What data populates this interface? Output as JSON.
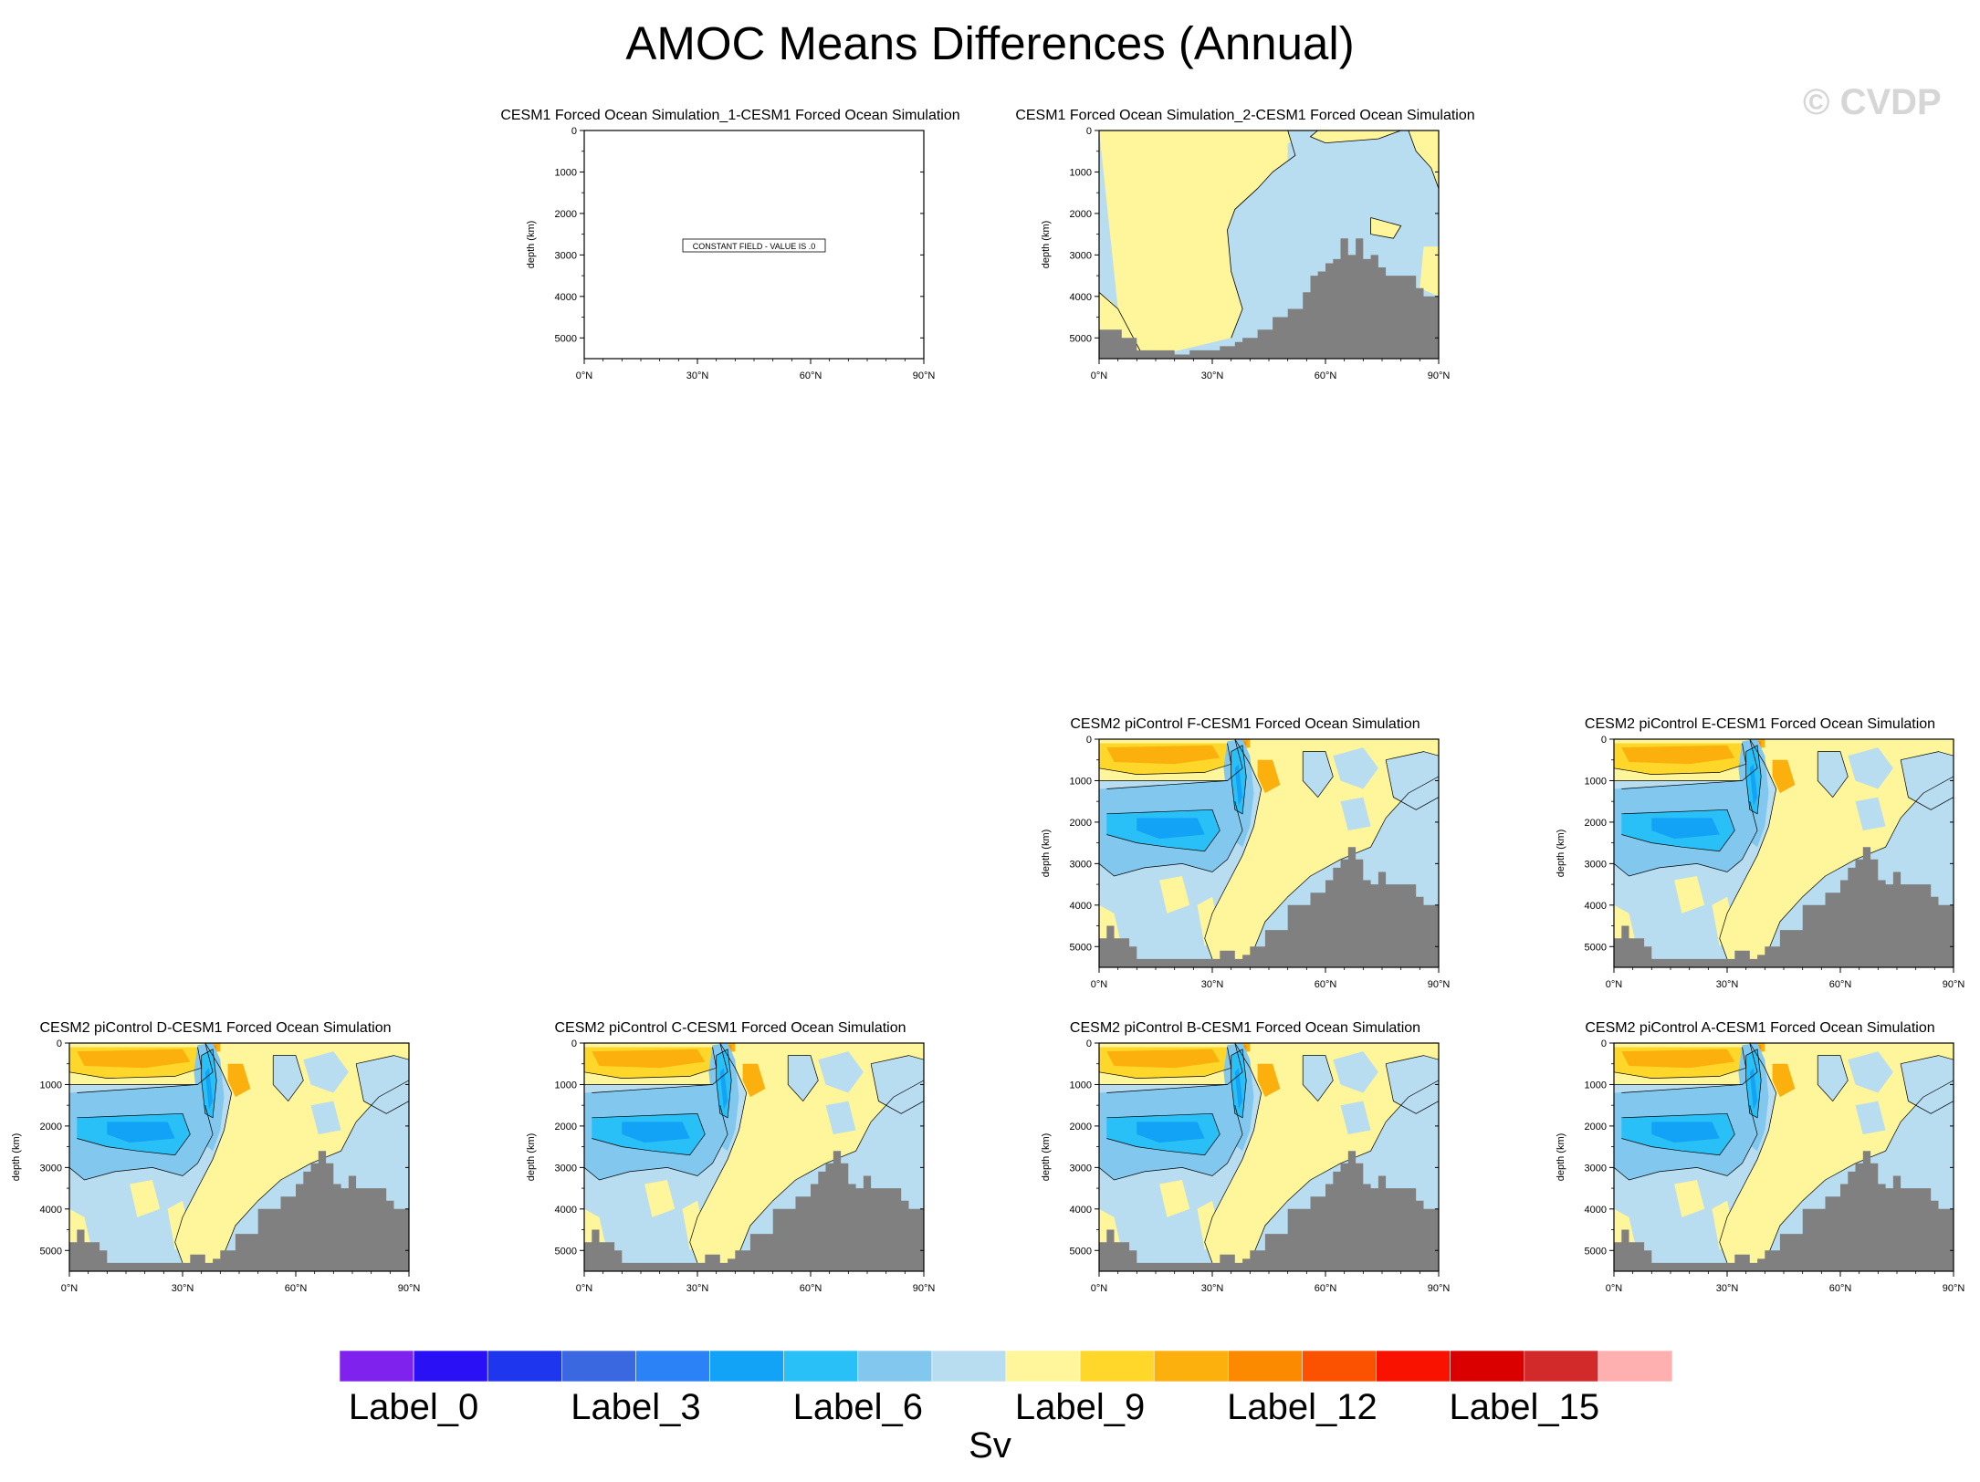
{
  "title": "AMOC Means Differences (Annual)",
  "watermark": "© CVDP",
  "panel_defaults": {
    "ylabel": "depth (km)",
    "yticks": [
      "0",
      "1000",
      "2000",
      "3000",
      "4000",
      "5000"
    ],
    "xticks": [
      "0°N",
      "30°N",
      "60°N",
      "90°N"
    ],
    "ylim": [
      0,
      5500
    ],
    "xlim": [
      0,
      90
    ]
  },
  "panels": [
    {
      "title": "CESM1 Forced Ocean Simulation_1-CESM1 Forced Ocean Simulation",
      "kind": "constant",
      "message": "CONSTANT FIELD - VALUE IS .0"
    },
    {
      "title": "CESM1 Forced Ocean Simulation_2-CESM1 Forced Ocean Simulation",
      "kind": "small"
    },
    {
      "title": "CESM2 piControl F-CESM1 Forced Ocean Simulation",
      "kind": "amoc"
    },
    {
      "title": "CESM2 piControl E-CESM1 Forced Ocean Simulation",
      "kind": "amoc"
    },
    {
      "title": "CESM2 piControl D-CESM1 Forced Ocean Simulation",
      "kind": "amoc"
    },
    {
      "title": "CESM2 piControl C-CESM1 Forced Ocean Simulation",
      "kind": "amoc"
    },
    {
      "title": "CESM2 piControl B-CESM1 Forced Ocean Simulation",
      "kind": "amoc"
    },
    {
      "title": "CESM2 piControl A-CESM1 Forced Ocean Simulation",
      "kind": "amoc"
    }
  ],
  "chart_data": {
    "type": "heatmap",
    "colorbar": {
      "colors": [
        "#8022ee",
        "#2a10f5",
        "#1e36ee",
        "#3a68e0",
        "#2a82f6",
        "#12a2f6",
        "#28c0f6",
        "#82c8ee",
        "#b8dcf0",
        "#fff59a",
        "#fed72a",
        "#fcb00e",
        "#fc8a00",
        "#fa5200",
        "#fa1200",
        "#da0000",
        "#d22a2a",
        "#feb0b0"
      ],
      "labels": [
        "Label_0",
        "Label_3",
        "Label_6",
        "Label_9",
        "Label_12",
        "Label_15"
      ],
      "label_bins": [
        0,
        3,
        6,
        9,
        12,
        15
      ],
      "units": "Sv"
    },
    "bathymetry_depth": {
      "lat": [
        0,
        2,
        4,
        6,
        8,
        10,
        12,
        14,
        16,
        18,
        20,
        22,
        24,
        26,
        28,
        30,
        32,
        34,
        36,
        38,
        40,
        42,
        44,
        46,
        48,
        50,
        52,
        54,
        56,
        58,
        60,
        62,
        64,
        66,
        68,
        70,
        72,
        74,
        76,
        78,
        80,
        82,
        84,
        86,
        88,
        90
      ],
      "depth": [
        4800,
        4500,
        4800,
        4800,
        5000,
        5300,
        5300,
        5300,
        5300,
        5300,
        5300,
        5300,
        5300,
        5300,
        5300,
        5300,
        5100,
        5100,
        5300,
        5200,
        5000,
        5000,
        4600,
        4600,
        4600,
        4000,
        4000,
        4000,
        3700,
        3700,
        3400,
        3100,
        2900,
        2600,
        2900,
        3400,
        3500,
        3200,
        3500,
        3500,
        3500,
        3500,
        3800,
        4000,
        4000,
        4000
      ]
    },
    "small_panel_bathymetry_depth": {
      "lat": [
        0,
        2,
        4,
        6,
        8,
        10,
        12,
        14,
        16,
        18,
        20,
        22,
        24,
        26,
        28,
        30,
        32,
        34,
        36,
        38,
        40,
        42,
        44,
        46,
        48,
        50,
        52,
        54,
        56,
        58,
        60,
        62,
        64,
        66,
        68,
        70,
        72,
        74,
        76,
        78,
        80,
        82,
        84,
        86,
        88,
        90
      ],
      "depth": [
        4800,
        4800,
        4800,
        5000,
        5000,
        5300,
        5300,
        5300,
        5300,
        5300,
        5400,
        5400,
        5300,
        5300,
        5300,
        5300,
        5200,
        5200,
        5100,
        5000,
        5000,
        4800,
        4800,
        4500,
        4500,
        4300,
        4300,
        3900,
        3500,
        3400,
        3200,
        3100,
        2600,
        3000,
        2600,
        3100,
        3000,
        3300,
        3500,
        3500,
        3500,
        3500,
        3800,
        4000,
        4000,
        4000
      ]
    },
    "small_panel_fields": {
      "yellow_bins": [
        9
      ],
      "blue_bins": [
        8
      ]
    },
    "amoc_fields": {
      "upper_cell_bins": [
        9,
        10,
        11,
        12
      ],
      "lower_cell_bins": [
        8,
        7,
        6,
        5
      ]
    }
  }
}
